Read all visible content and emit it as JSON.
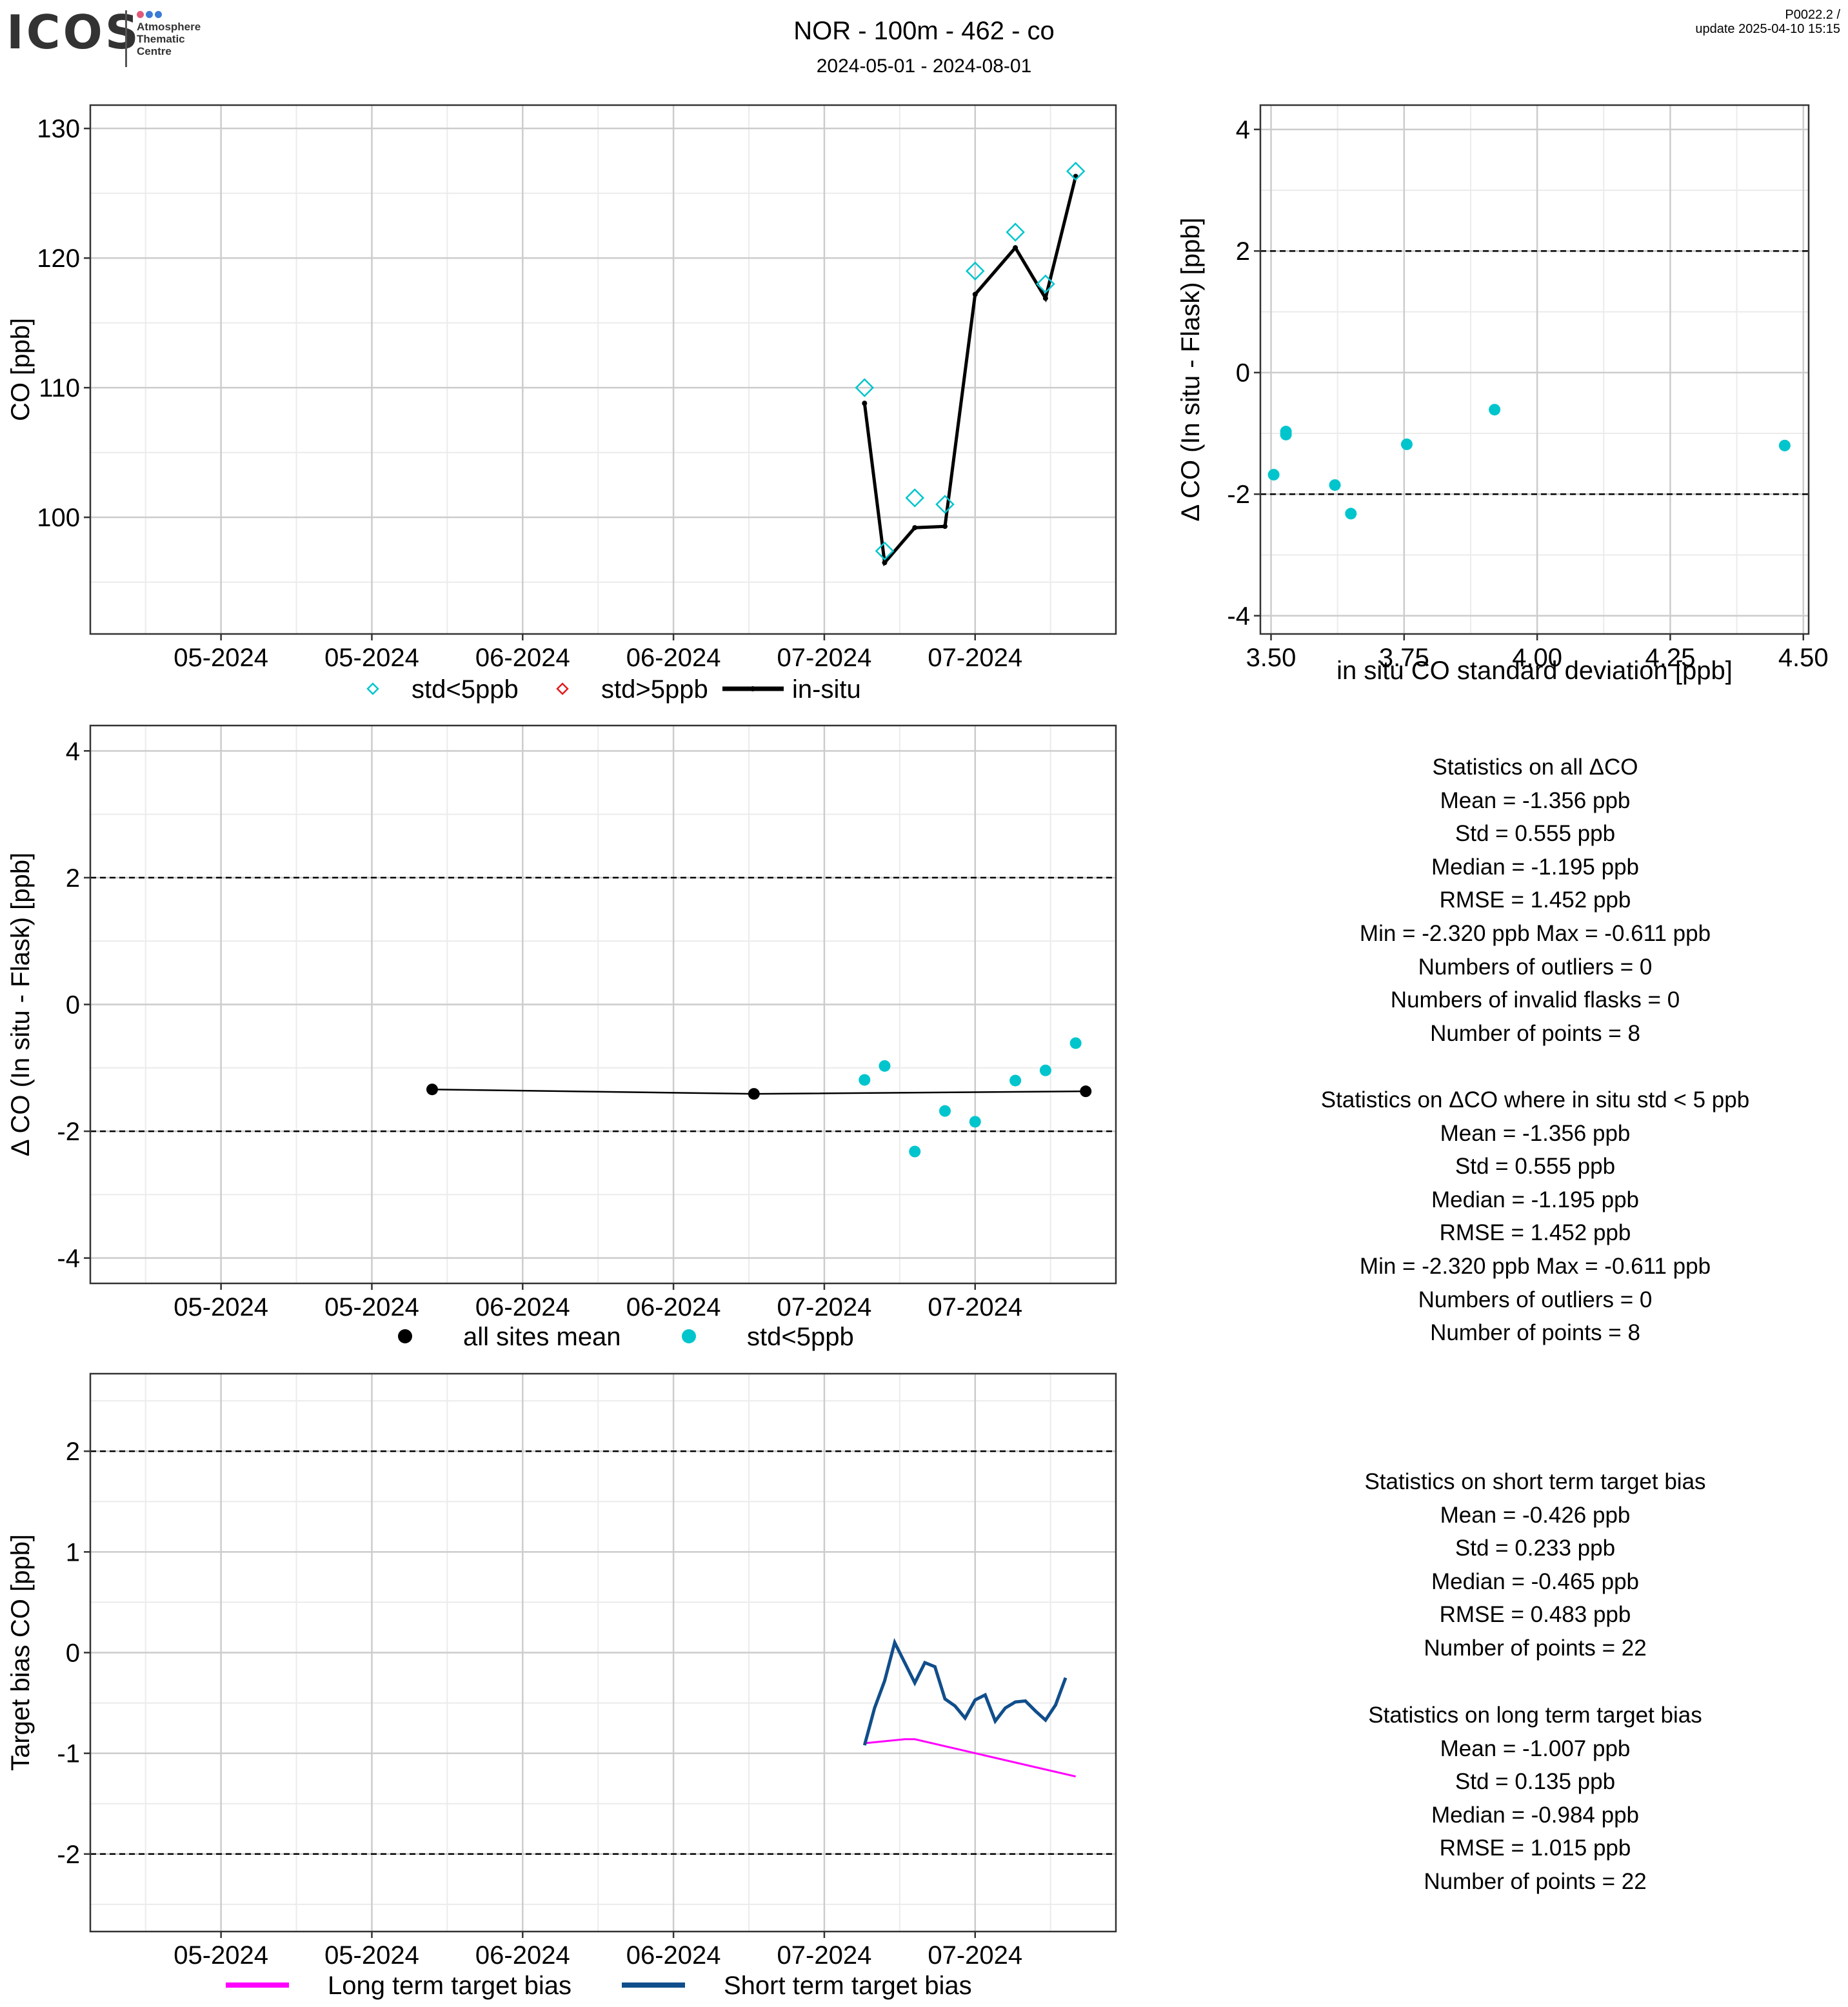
{
  "header": {
    "logo": "ICOS",
    "logo_sub": [
      "Atmosphere",
      "Thematic",
      "Centre"
    ],
    "title": "NOR - 100m - 462 - co",
    "date_range": "2024-05-01 - 2024-08-01",
    "version": "P0022.2 /",
    "update": "update  2025-04-10 15:15"
  },
  "colors": {
    "cyan": "#00C5CD",
    "red": "#E41A1C",
    "black": "#000000",
    "magenta": "#FF00FF",
    "navy": "#104E8B",
    "grid_major": "#CCCCCC",
    "grid_minor": "#EBEBEB"
  },
  "chart_data": [
    {
      "id": "co-timeseries",
      "type": "line",
      "ylabel": "CO [ppb]",
      "xlabel": "",
      "x_tick_labels": [
        "05-2024",
        "05-2024",
        "06-2024",
        "06-2024",
        "07-2024",
        "07-2024"
      ],
      "x_ticks": [
        "2024-05-01",
        "2024-05-16",
        "2024-05-31",
        "2024-06-15",
        "2024-06-30",
        "2024-07-15"
      ],
      "xlim": [
        "2024-04-18",
        "2024-07-29"
      ],
      "yticks": [
        100,
        110,
        120,
        130
      ],
      "ylim": [
        91,
        131.8
      ],
      "grid": true,
      "legend": {
        "position": "bottom",
        "entries": [
          "std<5ppb",
          "std>5ppb",
          "in-situ"
        ]
      },
      "series": [
        {
          "name": "std<5ppb",
          "marker": "diamond",
          "points": [
            {
              "x": "2024-07-04",
              "y": 110.0
            },
            {
              "x": "2024-07-06",
              "y": 97.4
            },
            {
              "x": "2024-07-09",
              "y": 101.5
            },
            {
              "x": "2024-07-12",
              "y": 101.0
            },
            {
              "x": "2024-07-15",
              "y": 119.0
            },
            {
              "x": "2024-07-19",
              "y": 122.0
            },
            {
              "x": "2024-07-22",
              "y": 118.0
            },
            {
              "x": "2024-07-25",
              "y": 126.7
            }
          ]
        },
        {
          "name": "std>5ppb",
          "marker": "diamond",
          "points": []
        },
        {
          "name": "in-situ",
          "marker": "line",
          "points": [
            {
              "x": "2024-07-04",
              "y": 108.8
            },
            {
              "x": "2024-07-06",
              "y": 96.5
            },
            {
              "x": "2024-07-09",
              "y": 99.2
            },
            {
              "x": "2024-07-12",
              "y": 99.3
            },
            {
              "x": "2024-07-15",
              "y": 117.2
            },
            {
              "x": "2024-07-19",
              "y": 120.8
            },
            {
              "x": "2024-07-22",
              "y": 116.9
            },
            {
              "x": "2024-07-25",
              "y": 126.3
            }
          ]
        }
      ]
    },
    {
      "id": "delta-vs-std",
      "type": "scatter",
      "ylabel": "Δ CO (In situ - Flask) [ppb]",
      "xlabel": "in situ CO standard deviation [ppb]",
      "xticks": [
        3.5,
        3.75,
        4.0,
        4.25,
        4.5
      ],
      "x_tick_labels": [
        "3.50",
        "3.75",
        "4.00",
        "4.25",
        "4.50"
      ],
      "xlim": [
        3.48,
        4.51
      ],
      "yticks": [
        -4,
        -2,
        0,
        2,
        4
      ],
      "ylim": [
        -4.3,
        4.4
      ],
      "hlines": [
        2,
        -2
      ],
      "grid": true,
      "series": [
        {
          "name": "std<5ppb",
          "points": [
            {
              "x": 3.505,
              "y": -1.68
            },
            {
              "x": 3.528,
              "y": -0.97
            },
            {
              "x": 3.528,
              "y": -1.02
            },
            {
              "x": 3.62,
              "y": -1.85
            },
            {
              "x": 3.65,
              "y": -2.32
            },
            {
              "x": 3.755,
              "y": -1.18
            },
            {
              "x": 3.92,
              "y": -0.61
            },
            {
              "x": 4.465,
              "y": -1.2
            }
          ]
        }
      ]
    },
    {
      "id": "delta-timeseries",
      "type": "scatter",
      "ylabel": "Δ CO (In situ - Flask) [ppb]",
      "xlabel": "",
      "x_tick_labels": [
        "05-2024",
        "05-2024",
        "06-2024",
        "06-2024",
        "07-2024",
        "07-2024"
      ],
      "x_ticks": [
        "2024-05-01",
        "2024-05-16",
        "2024-05-31",
        "2024-06-15",
        "2024-06-30",
        "2024-07-15"
      ],
      "xlim": [
        "2024-04-18",
        "2024-07-29"
      ],
      "yticks": [
        -4,
        -2,
        0,
        2,
        4
      ],
      "ylim": [
        -4.4,
        4.4
      ],
      "hlines": [
        2,
        -2
      ],
      "grid": true,
      "legend": {
        "position": "bottom",
        "entries": [
          "all sites mean",
          "std<5ppb"
        ]
      },
      "series": [
        {
          "name": "all sites mean",
          "points": [
            {
              "x": "2024-05-22",
              "y": -1.34
            },
            {
              "x": "2024-06-23",
              "y": -1.41
            },
            {
              "x": "2024-07-26",
              "y": -1.37
            }
          ]
        },
        {
          "name": "std<5ppb",
          "points": [
            {
              "x": "2024-07-04",
              "y": -1.19
            },
            {
              "x": "2024-07-06",
              "y": -0.97
            },
            {
              "x": "2024-07-09",
              "y": -2.32
            },
            {
              "x": "2024-07-12",
              "y": -1.68
            },
            {
              "x": "2024-07-15",
              "y": -1.85
            },
            {
              "x": "2024-07-19",
              "y": -1.2
            },
            {
              "x": "2024-07-22",
              "y": -1.04
            },
            {
              "x": "2024-07-25",
              "y": -0.61
            }
          ]
        }
      ]
    },
    {
      "id": "target-bias",
      "type": "line",
      "ylabel": "Target bias CO [ppb]",
      "xlabel": "",
      "x_tick_labels": [
        "05-2024",
        "05-2024",
        "06-2024",
        "06-2024",
        "07-2024",
        "07-2024"
      ],
      "x_ticks": [
        "2024-05-01",
        "2024-05-16",
        "2024-05-31",
        "2024-06-15",
        "2024-06-30",
        "2024-07-15"
      ],
      "xlim": [
        "2024-04-18",
        "2024-07-29"
      ],
      "yticks": [
        -2,
        -1,
        0,
        1,
        2
      ],
      "ylim": [
        -2.77,
        2.77
      ],
      "hlines": [
        2,
        -2
      ],
      "grid": true,
      "legend": {
        "position": "bottom",
        "entries": [
          "Long term target bias",
          "Short term target bias"
        ]
      },
      "series": [
        {
          "name": "Long term target bias",
          "points": [
            {
              "x": "2024-07-04",
              "y": -0.9
            },
            {
              "x": "2024-07-08",
              "y": -0.86
            },
            {
              "x": "2024-07-09",
              "y": -0.86
            },
            {
              "x": "2024-07-25",
              "y": -1.23
            }
          ]
        },
        {
          "name": "Short term target bias",
          "points": [
            {
              "x": "2024-07-04",
              "y": -0.92
            },
            {
              "x": "2024-07-05",
              "y": -0.55
            },
            {
              "x": "2024-07-06",
              "y": -0.28
            },
            {
              "x": "2024-07-07",
              "y": 0.1
            },
            {
              "x": "2024-07-08",
              "y": -0.1
            },
            {
              "x": "2024-07-09",
              "y": -0.3
            },
            {
              "x": "2024-07-10",
              "y": -0.1
            },
            {
              "x": "2024-07-11",
              "y": -0.14
            },
            {
              "x": "2024-07-12",
              "y": -0.46
            },
            {
              "x": "2024-07-13",
              "y": -0.53
            },
            {
              "x": "2024-07-14",
              "y": -0.65
            },
            {
              "x": "2024-07-15",
              "y": -0.47
            },
            {
              "x": "2024-07-16",
              "y": -0.42
            },
            {
              "x": "2024-07-17",
              "y": -0.68
            },
            {
              "x": "2024-07-18",
              "y": -0.55
            },
            {
              "x": "2024-07-19",
              "y": -0.49
            },
            {
              "x": "2024-07-20",
              "y": -0.48
            },
            {
              "x": "2024-07-21",
              "y": -0.58
            },
            {
              "x": "2024-07-22",
              "y": -0.67
            },
            {
              "x": "2024-07-23",
              "y": -0.52
            },
            {
              "x": "2024-07-24",
              "y": -0.25
            }
          ]
        }
      ]
    }
  ],
  "stats": {
    "all": [
      "Statistics on all ΔCO",
      "Mean =  -1.356 ppb",
      "Std =  0.555 ppb",
      "Median =  -1.195 ppb",
      "RMSE =  1.452 ppb",
      "Min =  -2.320 ppb Max =  -0.611 ppb",
      "Numbers of outliers =  0",
      "Numbers of invalid flasks =  0",
      "Number of points =  8"
    ],
    "lt5": [
      "Statistics on ΔCO where in situ std < 5 ppb",
      "Mean =  -1.356 ppb",
      "Std =  0.555 ppb",
      "Median =  -1.195 ppb",
      "RMSE =  1.452 ppb",
      "Min =  -2.320 ppb Max =  -0.611 ppb",
      "Numbers of outliers =  0",
      "Number of points =  8"
    ],
    "short": [
      "Statistics on short term target bias",
      "Mean =  -0.426 ppb",
      "Std =  0.233 ppb",
      "Median =  -0.465 ppb",
      "RMSE =  0.483 ppb",
      "Number of points =  22"
    ],
    "long": [
      "Statistics on long term target bias",
      "Mean =  -1.007 ppb",
      "Std =  0.135 ppb",
      "Median =  -0.984 ppb",
      "RMSE =  1.015 ppb",
      "Number of points =  22"
    ]
  }
}
